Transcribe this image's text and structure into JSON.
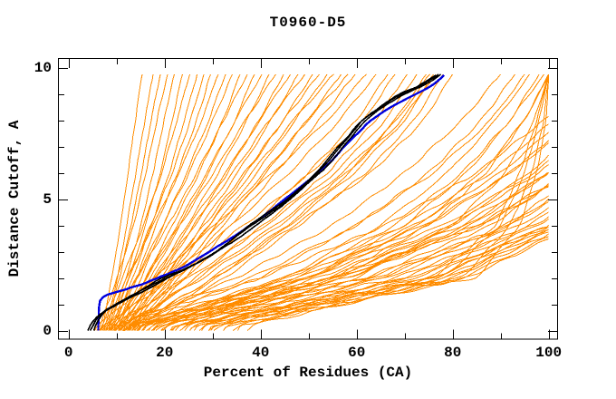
{
  "title": "T0960-D5",
  "axes": {
    "x": {
      "label": "Percent of Residues (CA)",
      "ticks": [
        0,
        20,
        40,
        60,
        80,
        100
      ],
      "minor_step": 10,
      "range": [
        0,
        100
      ]
    },
    "y": {
      "label": "Distance Cutoff, A",
      "ticks": [
        0,
        5,
        10
      ],
      "minor_step": 1,
      "range": [
        0,
        10
      ]
    }
  },
  "colors": {
    "prediction": "#FF8C00",
    "highlight_black": "#000000",
    "highlight_blue": "#0000DD",
    "background": "#FFFFFF",
    "axis": "#000000"
  },
  "chart_data": {
    "type": "line",
    "title": "T0960-D5",
    "xlabel": "Percent of Residues (CA)",
    "ylabel": "Distance Cutoff, A",
    "xlim": [
      0,
      100
    ],
    "ylim": [
      0,
      10
    ],
    "grid": false,
    "legend": null,
    "cutoff_grid": [
      0.2,
      2,
      4,
      6,
      8,
      9.75
    ],
    "series": [
      {
        "name": "prediction-models",
        "color": "#FF8C00",
        "note": "percent of residues at each cutoff in cutoff_grid; values > 100 mean the curve leaves the plot at the right edge",
        "curves": [
          [
            7.2,
            9,
            10.8,
            12.4,
            13.9,
            15.3
          ],
          [
            7.8,
            10.2,
            12.1,
            14,
            15.9,
            17.6
          ],
          [
            8.1,
            10.6,
            13,
            15.2,
            17.2,
            19.1
          ],
          [
            6.6,
            10.1,
            13.6,
            16.1,
            18.4,
            20.6
          ],
          [
            8.6,
            12,
            15.1,
            17.6,
            19.9,
            22
          ],
          [
            9.2,
            12.6,
            16,
            19.1,
            21.6,
            23.7
          ],
          [
            7.1,
            11.2,
            15.6,
            19.4,
            22.6,
            25.2
          ],
          [
            9.6,
            13.4,
            17.2,
            21,
            24.1,
            26.8
          ],
          [
            8.2,
            12.7,
            17.1,
            21.6,
            25.4,
            28.2
          ],
          [
            10.1,
            14.2,
            18.2,
            22.7,
            26.7,
            29.6
          ],
          [
            7.6,
            12.2,
            17.6,
            23.1,
            27.7,
            31.2
          ],
          [
            10.6,
            15.1,
            19.7,
            24.6,
            29.2,
            32.7
          ],
          [
            9.1,
            14.1,
            19.6,
            25.1,
            30.1,
            34.1
          ],
          [
            11.2,
            16.1,
            21.6,
            27.2,
            32.2,
            35.7
          ],
          [
            8.7,
            14.2,
            20.7,
            26.7,
            32.3,
            37.2
          ],
          [
            11.6,
            17.1,
            23.2,
            29.1,
            34.7,
            38.7
          ],
          [
            10.2,
            16.2,
            22.6,
            28.7,
            34.8,
            40.2
          ],
          [
            12.1,
            18.1,
            24.7,
            31.2,
            37.2,
            41.8
          ],
          [
            9.7,
            16.1,
            23.2,
            30.2,
            36.8,
            43.2
          ],
          [
            12.6,
            19.2,
            26.1,
            33.1,
            39.7,
            44.8
          ],
          [
            11.1,
            17.7,
            25.2,
            32.7,
            39.8,
            46.2
          ],
          [
            13.1,
            20.2,
            27.7,
            35.2,
            42.2,
            47.8
          ],
          [
            10.7,
            18.2,
            26.2,
            34.2,
            41.8,
            49.2
          ],
          [
            13.6,
            21.1,
            29.1,
            37.1,
            44.7,
            50.8
          ],
          [
            12.2,
            19.7,
            28.2,
            36.7,
            44.8,
            52.2
          ],
          [
            14.1,
            22.2,
            30.7,
            39.2,
            47.2,
            53.8
          ],
          [
            11.7,
            20.2,
            29.2,
            38.2,
            46.8,
            55.2
          ],
          [
            14.6,
            23.1,
            32.1,
            41.2,
            49.7,
            56.8
          ],
          [
            13.2,
            21.7,
            31.2,
            40.7,
            49.8,
            58.2
          ],
          [
            15.1,
            24.2,
            33.7,
            43.2,
            52.2,
            59.7
          ],
          [
            6.2,
            18,
            30.5,
            42.5,
            54,
            62
          ],
          [
            8.3,
            20.5,
            34,
            46,
            56.5,
            64
          ],
          [
            10.4,
            24,
            38,
            50,
            60,
            66.5
          ],
          [
            7.4,
            22,
            36.5,
            50.5,
            61.5,
            68
          ],
          [
            12.3,
            26.5,
            40.5,
            54,
            64,
            70.5
          ],
          [
            9.3,
            25,
            41,
            55.5,
            66,
            72.5
          ],
          [
            14.2,
            30,
            45.5,
            58.5,
            68,
            74.5
          ],
          [
            11.3,
            28,
            44,
            58,
            69.5,
            76
          ],
          [
            16.2,
            32.5,
            48,
            62,
            72,
            78
          ],
          [
            13.3,
            30.5,
            47,
            63,
            74,
            80
          ],
          [
            15.2,
            31,
            46,
            59.5,
            70,
            76.5
          ],
          [
            12.7,
            27,
            43,
            57,
            68.5,
            75.2
          ],
          [
            12,
            45,
            70,
            88,
            101,
            115
          ],
          [
            15,
            50,
            75,
            92,
            105,
            118
          ],
          [
            10,
            40,
            66,
            85,
            99,
            112
          ],
          [
            18,
            55,
            80,
            96,
            108,
            120
          ],
          [
            14,
            48,
            74,
            92,
            106,
            118
          ],
          [
            20,
            58,
            84,
            100,
            112,
            124
          ],
          [
            16,
            52,
            80,
            98,
            111,
            123
          ],
          [
            22,
            62,
            88,
            104,
            116,
            128
          ],
          [
            12.5,
            50,
            78,
            97,
            110,
            122
          ],
          [
            25,
            65,
            92,
            108,
            120,
            132
          ],
          [
            18.5,
            58,
            86,
            104,
            117,
            129
          ],
          [
            28,
            70,
            96,
            112,
            124,
            136
          ],
          [
            15.5,
            55,
            85,
            104,
            118,
            130
          ],
          [
            30,
            74,
            100,
            116,
            128,
            140
          ],
          [
            20.5,
            62,
            92,
            110,
            123,
            135
          ],
          [
            33,
            78,
            102,
            118,
            132,
            144
          ],
          [
            24,
            68,
            97,
            115,
            128,
            140
          ],
          [
            36,
            80,
            104,
            122,
            136,
            148
          ],
          [
            26,
            72,
            101,
            119,
            132,
            144
          ],
          [
            38,
            82,
            105,
            124,
            140,
            152
          ],
          [
            30.5,
            79,
            103,
            121,
            140,
            154
          ],
          [
            35,
            83,
            106,
            126,
            146,
            160
          ],
          [
            28.5,
            76,
            100,
            118,
            134,
            148
          ],
          [
            22.5,
            66,
            94,
            112,
            126,
            138
          ],
          [
            17,
            56,
            86,
            105,
            119,
            131
          ],
          [
            13,
            47,
            72,
            90,
            103,
            116
          ],
          [
            19,
            57,
            83,
            100,
            113,
            125
          ],
          [
            23,
            64,
            91,
            107,
            119,
            131
          ],
          [
            27,
            71,
            98,
            114,
            126,
            138
          ],
          [
            31,
            76,
            102,
            119,
            134,
            147
          ],
          [
            17.5,
            54,
            82,
            100,
            114,
            126
          ],
          [
            10.5,
            35,
            55,
            70,
            82,
            90
          ],
          [
            12.4,
            40,
            60,
            75,
            86,
            93
          ],
          [
            15.2,
            45,
            65,
            79,
            89,
            96
          ],
          [
            9.4,
            38,
            60,
            76,
            88,
            95
          ],
          [
            18.2,
            50,
            70,
            83,
            92,
            98
          ],
          [
            14.4,
            46,
            68,
            82,
            92,
            99
          ],
          [
            20.2,
            55,
            75,
            87,
            95,
            100
          ],
          [
            16.4,
            50,
            73,
            86,
            95,
            100
          ],
          [
            22.2,
            60,
            80,
            91,
            97,
            100
          ],
          [
            26,
            78,
            90,
            95,
            98,
            100
          ],
          [
            30,
            82,
            92,
            96.5,
            99,
            100
          ],
          [
            24,
            76,
            89,
            94,
            97.5,
            100
          ],
          [
            33,
            85,
            94,
            97.5,
            99.5,
            100
          ]
        ]
      },
      {
        "name": "highlight-model-blue",
        "color": "#0000DD",
        "points": [
          [
            6.2,
            0
          ],
          [
            6.3,
            1.2
          ],
          [
            8,
            1.35
          ],
          [
            12,
            1.55
          ],
          [
            16,
            1.8
          ],
          [
            19.5,
            2.1
          ],
          [
            24.5,
            2.45
          ],
          [
            30,
            3.05
          ],
          [
            33.8,
            3.5
          ],
          [
            37.2,
            3.95
          ],
          [
            41.2,
            4.45
          ],
          [
            45.2,
            5
          ],
          [
            49,
            5.55
          ],
          [
            52.5,
            6.05
          ],
          [
            55,
            6.5
          ],
          [
            57,
            6.95
          ],
          [
            59.5,
            7.35
          ],
          [
            62.8,
            7.95
          ],
          [
            66.5,
            8.45
          ],
          [
            70.5,
            8.85
          ],
          [
            74,
            9.15
          ],
          [
            77,
            9.45
          ],
          [
            78.2,
            9.7
          ]
        ]
      },
      {
        "name": "highlight-model-black",
        "color": "#000000",
        "strands": [
          [
            [
              4.5,
              0
            ],
            [
              5.5,
              0.4
            ],
            [
              7,
              0.7
            ],
            [
              10,
              1
            ],
            [
              14,
              1.4
            ],
            [
              20,
              2
            ],
            [
              25,
              2.4
            ],
            [
              31,
              3
            ],
            [
              34.5,
              3.5
            ],
            [
              38,
              4
            ],
            [
              42,
              4.5
            ],
            [
              46,
              5
            ],
            [
              49,
              5.5
            ],
            [
              52,
              6
            ],
            [
              54.5,
              6.5
            ],
            [
              56.5,
              7
            ],
            [
              58.5,
              7.4
            ],
            [
              61,
              8
            ],
            [
              65,
              8.5
            ],
            [
              69,
              9
            ],
            [
              72,
              9.2
            ],
            [
              75,
              9.5
            ],
            [
              77,
              9.75
            ]
          ],
          [
            [
              5.2,
              0
            ],
            [
              6.5,
              0.5
            ],
            [
              8,
              0.8
            ],
            [
              11,
              1.1
            ],
            [
              15.5,
              1.5
            ],
            [
              21,
              2.05
            ],
            [
              26.5,
              2.5
            ],
            [
              32,
              3.1
            ],
            [
              36,
              3.6
            ],
            [
              39.5,
              4.1
            ],
            [
              43.5,
              4.6
            ],
            [
              47,
              5.1
            ],
            [
              50,
              5.6
            ],
            [
              53,
              6.1
            ],
            [
              55.5,
              6.6
            ],
            [
              57.5,
              7.1
            ],
            [
              60,
              7.6
            ],
            [
              62.5,
              8.1
            ],
            [
              66.5,
              8.6
            ],
            [
              70.5,
              9.05
            ],
            [
              73.5,
              9.3
            ],
            [
              76,
              9.55
            ],
            [
              77.5,
              9.75
            ]
          ],
          [
            [
              4,
              0
            ],
            [
              5,
              0.35
            ],
            [
              6.5,
              0.65
            ],
            [
              9.5,
              0.95
            ],
            [
              13,
              1.3
            ],
            [
              19,
              1.95
            ],
            [
              24,
              2.3
            ],
            [
              30,
              2.9
            ],
            [
              33.5,
              3.4
            ],
            [
              37,
              3.9
            ],
            [
              41,
              4.4
            ],
            [
              45,
              4.9
            ],
            [
              48,
              5.4
            ],
            [
              51,
              5.9
            ],
            [
              53.5,
              6.4
            ],
            [
              56,
              6.95
            ],
            [
              58,
              7.3
            ],
            [
              60.5,
              7.9
            ],
            [
              64,
              8.4
            ],
            [
              68.5,
              8.95
            ],
            [
              71.5,
              9.15
            ],
            [
              74.5,
              9.45
            ],
            [
              76.5,
              9.7
            ]
          ]
        ]
      }
    ]
  }
}
